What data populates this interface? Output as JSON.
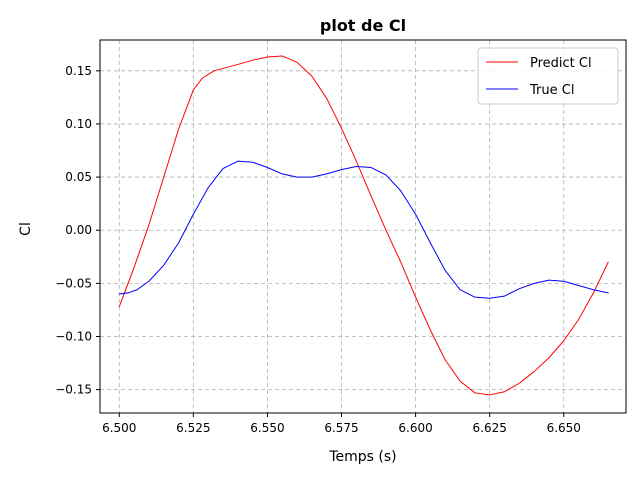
{
  "chart_data": {
    "type": "line",
    "title": "plot de Cl",
    "xlabel": "Temps (s)",
    "ylabel": "Cl",
    "xlim": [
      6.4935,
      6.671
    ],
    "ylim": [
      -0.172,
      0.179
    ],
    "xticks": [
      6.5,
      6.525,
      6.55,
      6.575,
      6.6,
      6.625,
      6.65
    ],
    "xtick_labels": [
      "6.500",
      "6.525",
      "6.550",
      "6.575",
      "6.600",
      "6.625",
      "6.650"
    ],
    "yticks": [
      -0.15,
      -0.1,
      -0.05,
      0.0,
      0.05,
      0.1,
      0.15
    ],
    "ytick_labels": [
      "−0.15",
      "−0.10",
      "−0.05",
      "0.00",
      "0.05",
      "0.10",
      "0.15"
    ],
    "grid": true,
    "legend_position": "top-right",
    "series": [
      {
        "name": "Predict Cl",
        "color": "#ff0000",
        "x": [
          6.5,
          6.505,
          6.51,
          6.515,
          6.52,
          6.525,
          6.528,
          6.532,
          6.54,
          6.545,
          6.55,
          6.555,
          6.56,
          6.565,
          6.57,
          6.575,
          6.58,
          6.585,
          6.59,
          6.595,
          6.6,
          6.605,
          6.61,
          6.615,
          6.62,
          6.625,
          6.63,
          6.635,
          6.64,
          6.645,
          6.65,
          6.655,
          6.66,
          6.665
        ],
        "y": [
          -0.072,
          -0.035,
          0.005,
          0.05,
          0.095,
          0.132,
          0.143,
          0.15,
          0.156,
          0.16,
          0.163,
          0.164,
          0.158,
          0.145,
          0.124,
          0.096,
          0.065,
          0.032,
          0.0,
          -0.03,
          -0.063,
          -0.094,
          -0.122,
          -0.142,
          -0.153,
          -0.155,
          -0.152,
          -0.144,
          -0.133,
          -0.12,
          -0.104,
          -0.084,
          -0.059,
          -0.03
        ]
      },
      {
        "name": "True Cl",
        "color": "#0000ff",
        "x": [
          6.5,
          6.503,
          6.506,
          6.51,
          6.515,
          6.52,
          6.525,
          6.53,
          6.535,
          6.54,
          6.545,
          6.55,
          6.555,
          6.56,
          6.565,
          6.57,
          6.575,
          6.58,
          6.585,
          6.59,
          6.595,
          6.6,
          6.605,
          6.61,
          6.615,
          6.62,
          6.625,
          6.63,
          6.635,
          6.64,
          6.645,
          6.65,
          6.655,
          6.66,
          6.665
        ],
        "y": [
          -0.06,
          -0.059,
          -0.056,
          -0.048,
          -0.033,
          -0.012,
          0.015,
          0.04,
          0.058,
          0.065,
          0.064,
          0.059,
          0.053,
          0.05,
          0.05,
          0.053,
          0.057,
          0.06,
          0.059,
          0.052,
          0.037,
          0.015,
          -0.012,
          -0.038,
          -0.056,
          -0.063,
          -0.064,
          -0.062,
          -0.055,
          -0.05,
          -0.047,
          -0.048,
          -0.052,
          -0.056,
          -0.059
        ]
      }
    ]
  }
}
